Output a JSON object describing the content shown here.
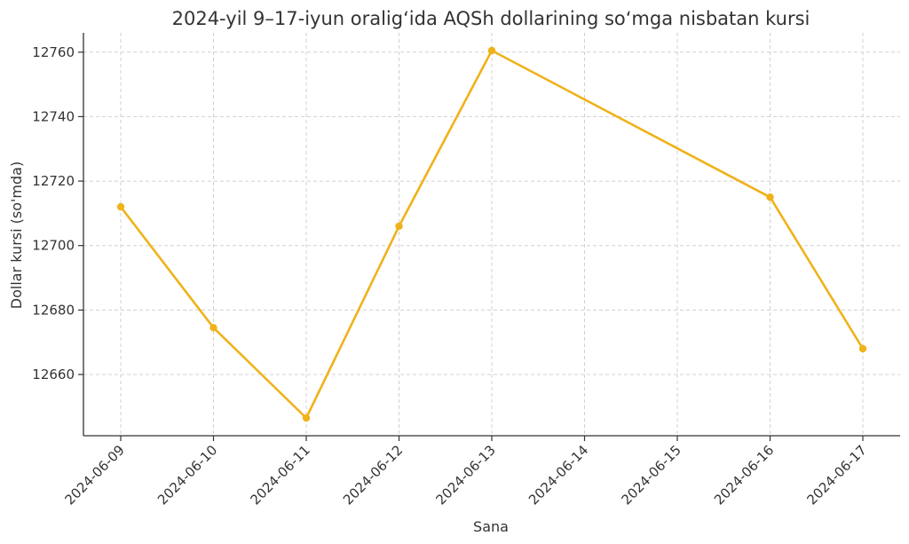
{
  "chart_data": {
    "type": "line",
    "title": "2024-yil 9–17-iyun oralig‘ida AQSh dollarining so‘mga nisbatan kursi",
    "xlabel": "Sana",
    "ylabel": "Dollar kursi (so'mda)",
    "x_ticks": [
      "2024-06-09",
      "2024-06-10",
      "2024-06-11",
      "2024-06-12",
      "2024-06-13",
      "2024-06-14",
      "2024-06-15",
      "2024-06-16",
      "2024-06-17"
    ],
    "y_ticks": [
      12660,
      12680,
      12700,
      12720,
      12740,
      12760
    ],
    "ylim": [
      12641,
      12766
    ],
    "xlim": [
      "2024-06-09",
      "2024-06-17"
    ],
    "grid": true,
    "series": [
      {
        "color": "#f0b21a",
        "points": [
          {
            "x": "2024-06-09",
            "y": 12712
          },
          {
            "x": "2024-06-10",
            "y": 12674.5
          },
          {
            "x": "2024-06-11",
            "y": 12646.5
          },
          {
            "x": "2024-06-12",
            "y": 12706
          },
          {
            "x": "2024-06-13",
            "y": 12760.5
          },
          {
            "x": "2024-06-16",
            "y": 12715
          },
          {
            "x": "2024-06-17",
            "y": 12668
          }
        ]
      }
    ]
  }
}
